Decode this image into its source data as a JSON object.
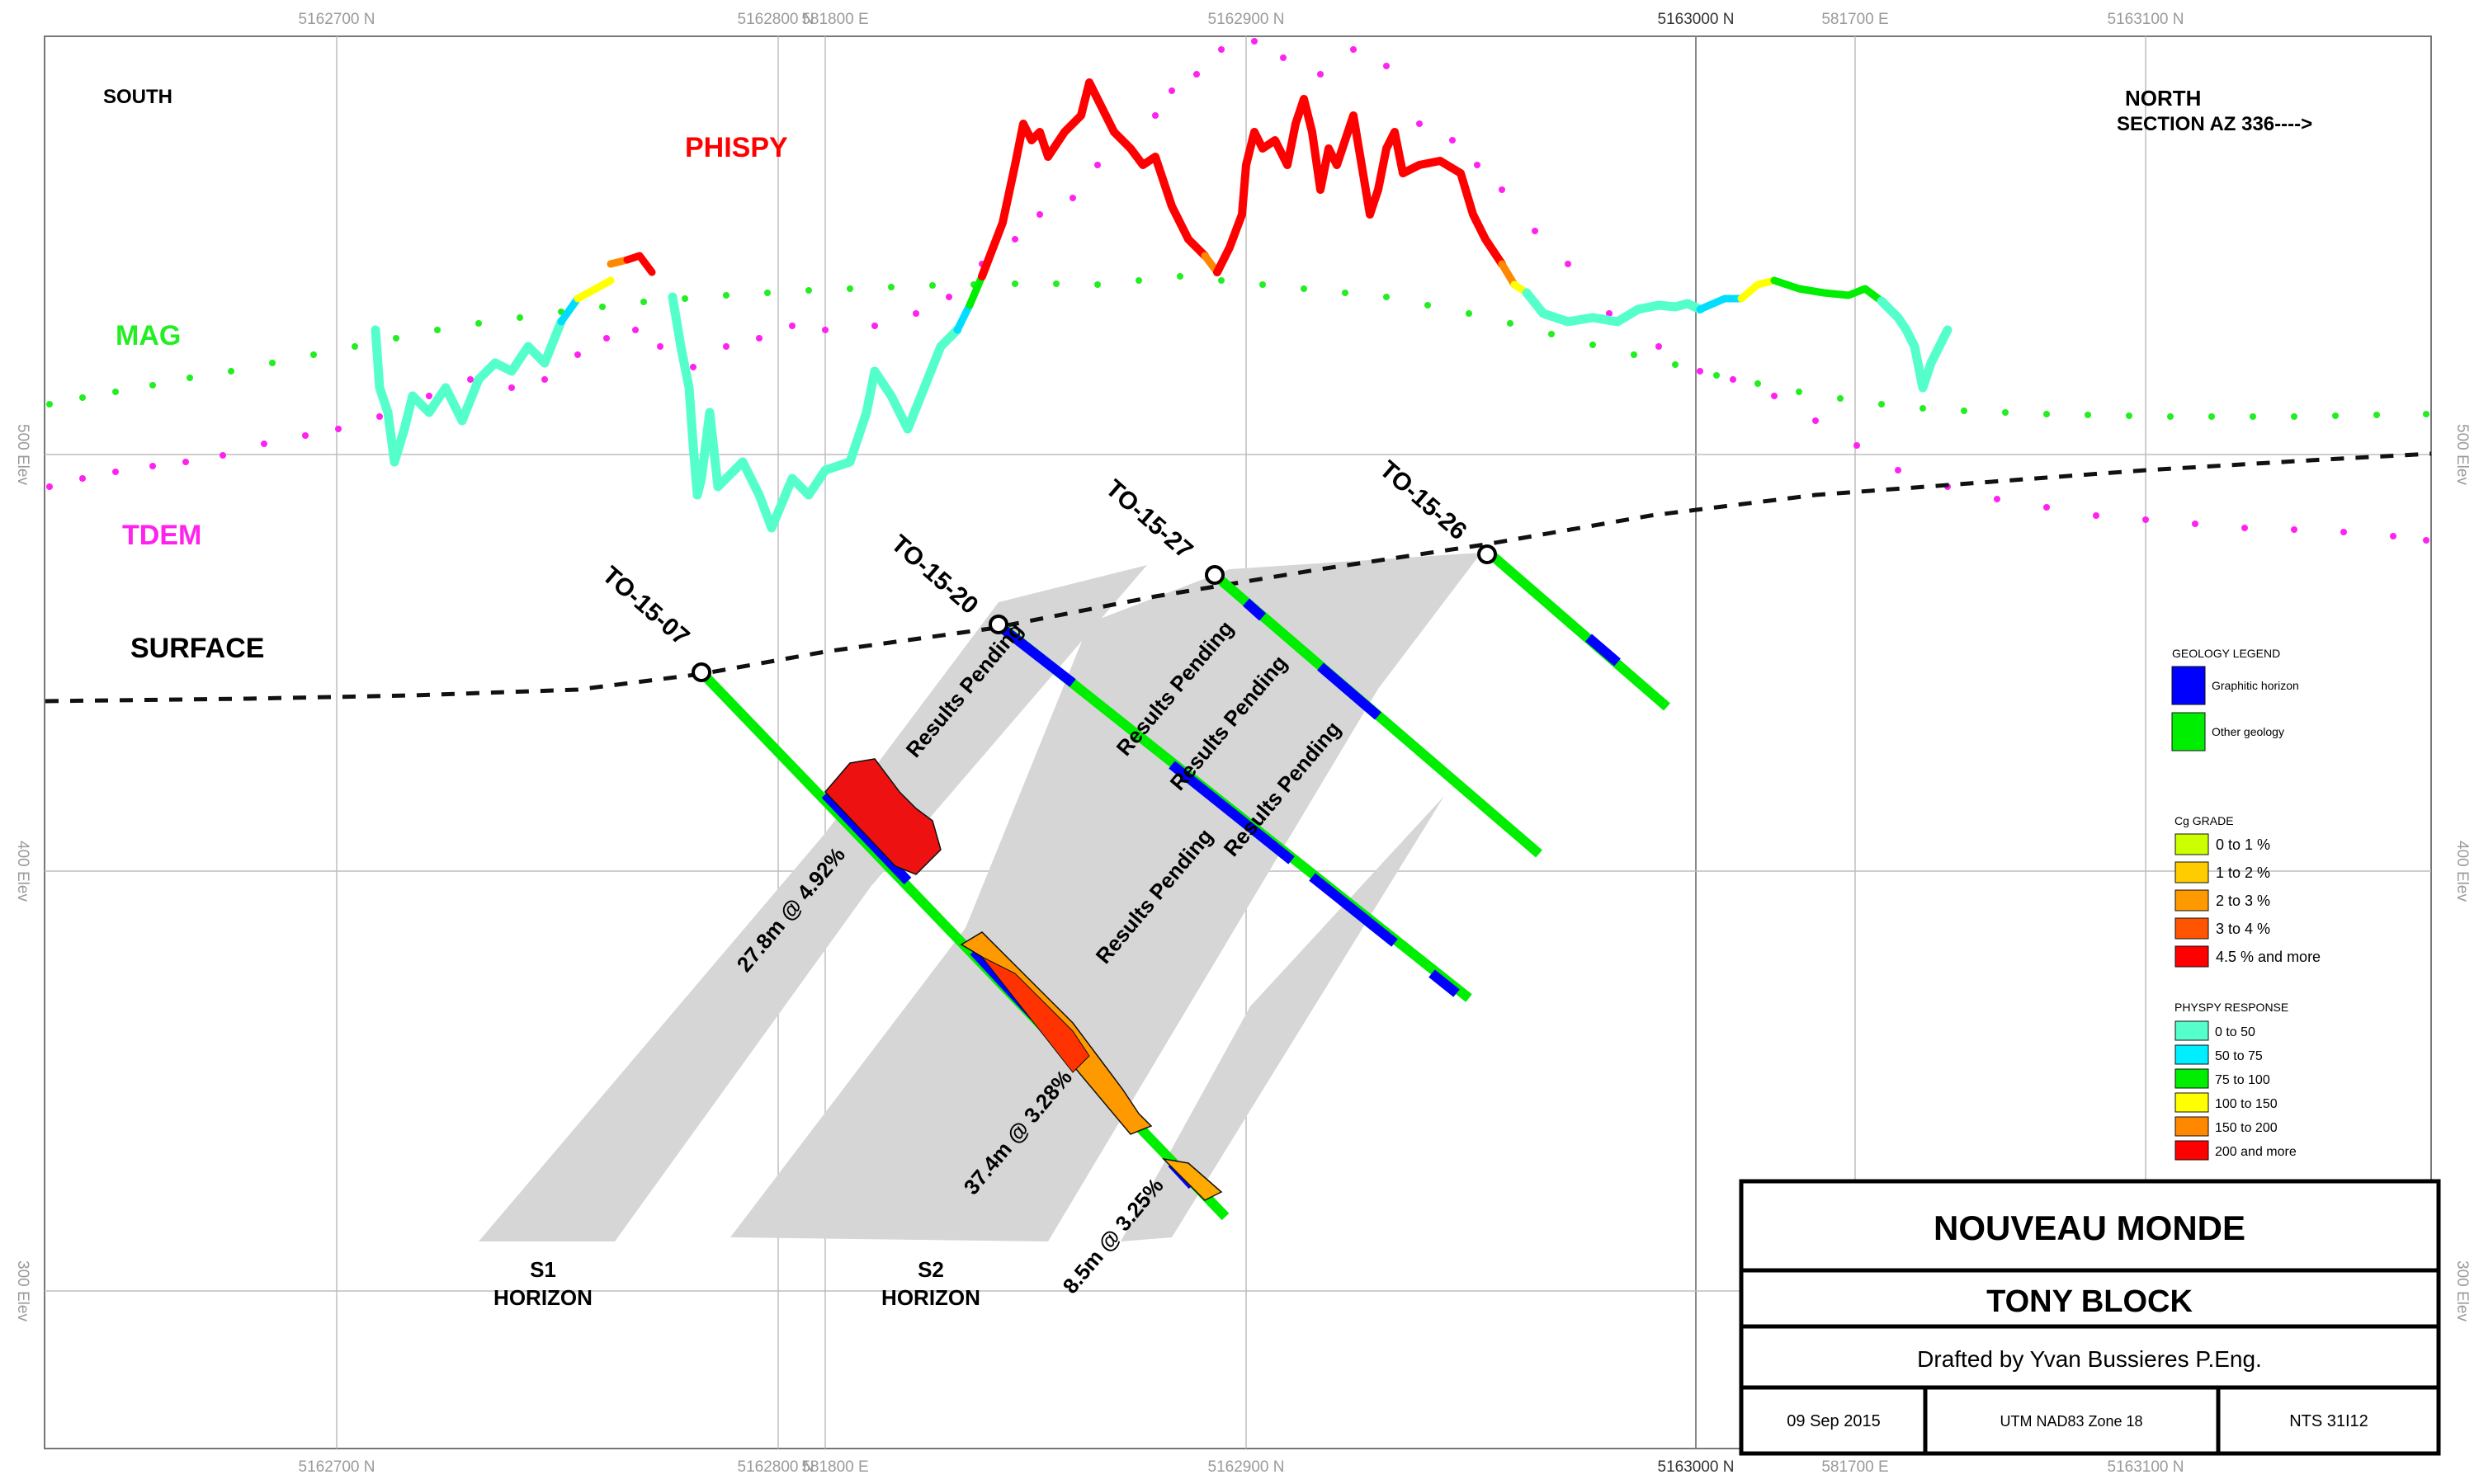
{
  "grid": {
    "top_labels": [
      "5162700 N",
      "5162800 N",
      "581800 E",
      "5162900 N",
      "5163000 N",
      "581700 E",
      "5163100 N"
    ],
    "bottom_labels": [
      "5162700 N",
      "5162800 N",
      "581800 E",
      "5162900 N",
      "5163000 N",
      "581700 E",
      "5163100 N"
    ],
    "elev_labels": [
      "500 Elev",
      "400 Elev",
      "300 Elev"
    ]
  },
  "labels": {
    "south": "SOUTH",
    "north": "NORTH",
    "section_az": "SECTION AZ 336---->",
    "phispy": "PHISPY",
    "mag": "MAG",
    "tdem": "TDEM",
    "surface": "SURFACE",
    "s1": "S1",
    "s2": "S2",
    "horizon": "HORIZON"
  },
  "drillholes": [
    {
      "id": "TO-15-07"
    },
    {
      "id": "TO-15-20"
    },
    {
      "id": "TO-15-27"
    },
    {
      "id": "TO-15-26"
    }
  ],
  "intercepts": {
    "i1": "27.8m @ 4.92%",
    "i2": "37.4m @ 3.28%",
    "i3": "8.5m @ 3.25%",
    "pending": "Results Pending"
  },
  "geology_legend": {
    "title": "GEOLOGY LEGEND",
    "items": [
      {
        "label": "Graphitic horizon",
        "color": "#0000ff"
      },
      {
        "label": "Other geology",
        "color": "#00ee00"
      }
    ]
  },
  "cg_legend": {
    "title": "Cg GRADE",
    "items": [
      {
        "label": "0 to 1 %",
        "color": "#ccff00"
      },
      {
        "label": "1 to 2 %",
        "color": "#ffcc00"
      },
      {
        "label": "2 to 3 %",
        "color": "#ff9900"
      },
      {
        "label": "3 to 4 %",
        "color": "#ff5500"
      },
      {
        "label": "4.5 % and more",
        "color": "#ff0000"
      }
    ]
  },
  "physpy_legend": {
    "title": "PHYSPY RESPONSE",
    "items": [
      {
        "label": "0 to 50",
        "color": "#55ffcc"
      },
      {
        "label": "50 to 75",
        "color": "#00eeff"
      },
      {
        "label": "75 to 100",
        "color": "#00ee00"
      },
      {
        "label": "100 to 150",
        "color": "#ffff00"
      },
      {
        "label": "150 to 200",
        "color": "#ff8800"
      },
      {
        "label": "200 and more",
        "color": "#ff0000"
      }
    ]
  },
  "title_block": {
    "company": "NOUVEAU MONDE",
    "project": "TONY BLOCK",
    "drafted": "Drafted by Yvan Bussieres P.Eng.",
    "date": "09 Sep 2015",
    "datum": "UTM NAD83 Zone 18",
    "nts": "NTS 31I12"
  }
}
